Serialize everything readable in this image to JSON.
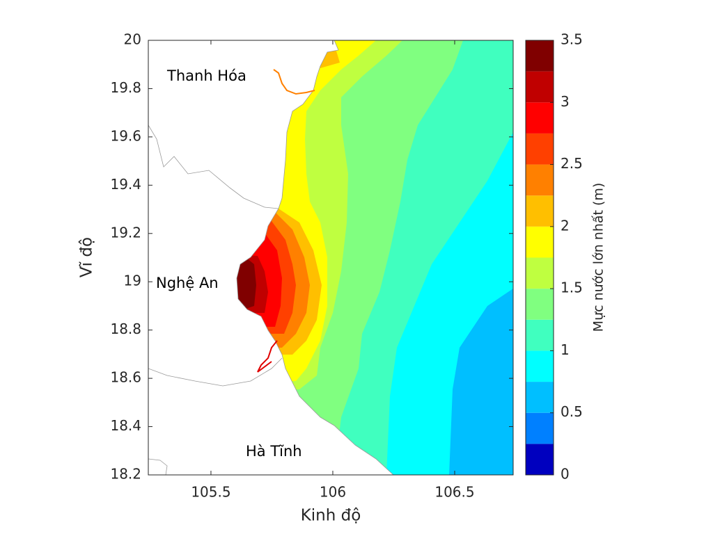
{
  "chart_data": {
    "type": "contour-map",
    "xlabel": "Kinh độ",
    "ylabel": "Vĩ độ",
    "xlim": [
      105.243,
      106.74
    ],
    "ylim": [
      18.2,
      20
    ],
    "xticks": [
      105.5,
      106,
      106.5
    ],
    "yticks": [
      18.2,
      18.4,
      18.6,
      18.8,
      19,
      19.2,
      19.4,
      19.6,
      19.8,
      20
    ],
    "annotations": [
      "Thanh Hóa",
      "Nghệ An",
      "Hà Tĩnh"
    ],
    "colorbar": {
      "label": "Mực nước lớn nhất (m)",
      "lim": [
        0,
        3.5
      ],
      "ticks": [
        0,
        0.5,
        1,
        1.5,
        2,
        2.5,
        3,
        3.5
      ],
      "levels": [
        0,
        0.25,
        0.5,
        0.75,
        1,
        1.25,
        1.5,
        1.75,
        2,
        2.25,
        2.5,
        2.75,
        3,
        3.25
      ],
      "colors": [
        "#0000bf",
        "#0080ff",
        "#00bfff",
        "#00ffff",
        "#40ffbf",
        "#80ff80",
        "#bfff40",
        "#ffff00",
        "#ffbf00",
        "#ff8000",
        "#ff4000",
        "#ff0000",
        "#c00000",
        "#800000"
      ]
    }
  }
}
